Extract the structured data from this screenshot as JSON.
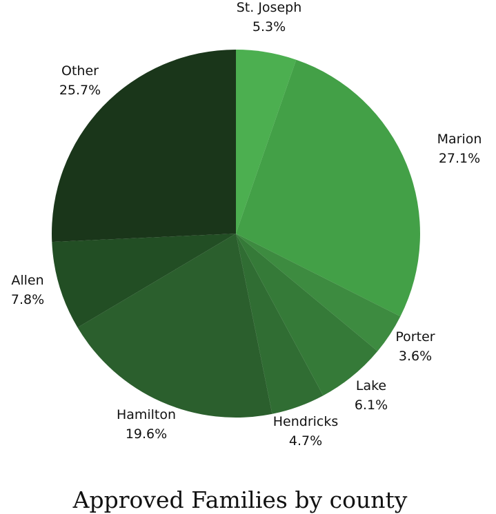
{
  "chart_data": {
    "type": "pie",
    "title": "Approved Families by county",
    "slices": [
      {
        "label": "St. Joseph",
        "value": 5.3,
        "value_label": "5.3%",
        "color": "#4caf50"
      },
      {
        "label": "Marion",
        "value": 27.1,
        "value_label": "27.1%",
        "color": "#43a047"
      },
      {
        "label": "Porter",
        "value": 3.6,
        "value_label": "3.6%",
        "color": "#3d8b40"
      },
      {
        "label": "Lake",
        "value": 6.1,
        "value_label": "6.1%",
        "color": "#357a38"
      },
      {
        "label": "Hendricks",
        "value": 4.7,
        "value_label": "4.7%",
        "color": "#306d33"
      },
      {
        "label": "Hamilton",
        "value": 19.6,
        "value_label": "19.6%",
        "color": "#2b5f2d"
      },
      {
        "label": "Allen",
        "value": 7.8,
        "value_label": "7.8%",
        "color": "#224e24"
      },
      {
        "label": "Other",
        "value": 25.7,
        "value_label": "25.7%",
        "color": "#1a361a"
      }
    ],
    "start_angle": "12 o'clock",
    "direction": "clockwise",
    "legend": "none"
  }
}
